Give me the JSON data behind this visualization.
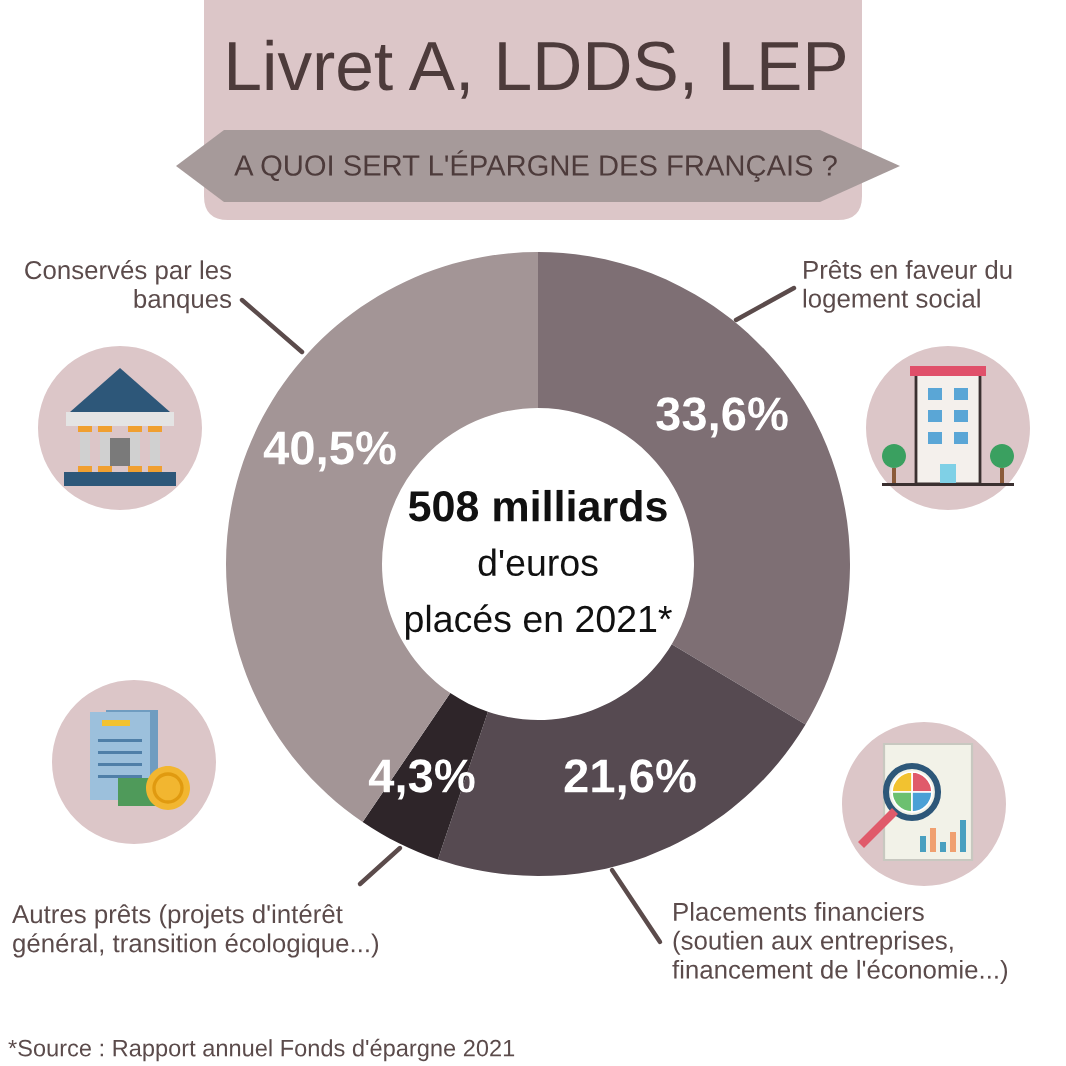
{
  "chart_data": {
    "type": "donut",
    "title": "Livret A, LDDS, LEP",
    "subtitle": "A QUOI SERT L'ÉPARGNE DES FRANÇAIS ?",
    "categories": [
      "Prêts en faveur du\nlogement social",
      "Placements financiers\n(soutien aux entreprises,\nfinancement de l'économie...)",
      "Autres prêts (projets d'intérêt\ngénéral, transition écologique...)",
      "Conservés par les\nbanques"
    ],
    "values": [
      33.6,
      21.6,
      4.3,
      40.5
    ],
    "colors": [
      "#7e6f74",
      "#564a51",
      "#2e2529",
      "#a39596"
    ],
    "value_labels": [
      "33,6%",
      "21,6%",
      "4,3%",
      "40,5%"
    ],
    "annotations": [
      "508 milliards\nd'euros\nplacés en 2021*",
      "*Source : Rapport annuel Fonds d'épargne 2021"
    ]
  }
}
